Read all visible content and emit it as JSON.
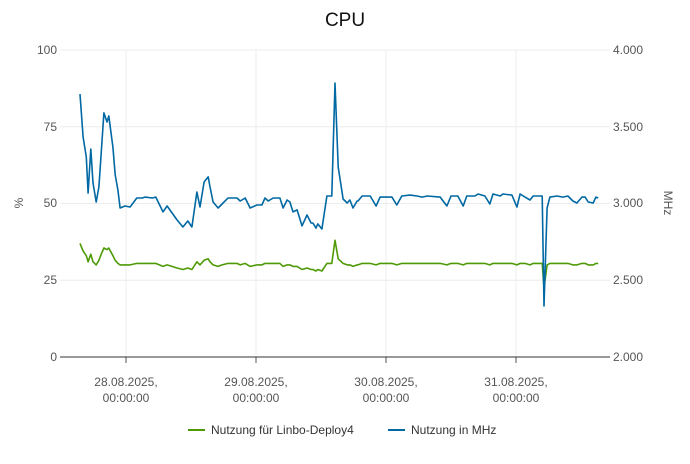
{
  "chart_data": {
    "type": "line",
    "title": "CPU",
    "ylabel_left": "%",
    "ylabel_right": "MHz",
    "ylim_left": [
      0,
      100
    ],
    "ylim_right": [
      2000,
      4000
    ],
    "yticks_left": [
      "0",
      "25",
      "50",
      "75",
      "100"
    ],
    "yticks_right": [
      "2.000",
      "2.500",
      "3.000",
      "3.500",
      "4.000"
    ],
    "xticks": [
      {
        "value": "2025-08-28 00:00",
        "label1": "28.08.2025,",
        "label2": "00:00:00"
      },
      {
        "value": "2025-08-29 00:00",
        "label1": "29.08.2025,",
        "label2": "00:00:00"
      },
      {
        "value": "2025-08-30 00:00",
        "label1": "30.08.2025,",
        "label2": "00:00:00"
      },
      {
        "value": "2025-08-31 00:00",
        "label1": "31.08.2025,",
        "label2": "00:00:00"
      }
    ],
    "grid": true,
    "legend_position": "bottom",
    "x": [
      "2025-08-27 15:30",
      "2025-08-27 16:05",
      "2025-08-27 16:40",
      "2025-08-27 17:00",
      "2025-08-27 17:30",
      "2025-08-27 17:55",
      "2025-08-27 18:30",
      "2025-08-27 19:00",
      "2025-08-27 19:25",
      "2025-08-27 19:55",
      "2025-08-27 20:30",
      "2025-08-27 20:50",
      "2025-08-27 21:35",
      "2025-08-27 22:00",
      "2025-08-27 22:30",
      "2025-08-27 22:55",
      "2025-08-27 23:50",
      "2025-08-28 00:45",
      "2025-08-28 02:00",
      "2025-08-28 03:00",
      "2025-08-28 03:30",
      "2025-08-28 04:50",
      "2025-08-28 05:30",
      "2025-08-28 06:50",
      "2025-08-28 07:35",
      "2025-08-28 09:25",
      "2025-08-28 10:30",
      "2025-08-28 11:25",
      "2025-08-28 12:10",
      "2025-08-28 13:05",
      "2025-08-28 13:40",
      "2025-08-28 14:25",
      "2025-08-28 15:10",
      "2025-08-28 15:30",
      "2025-08-28 16:05",
      "2025-08-28 17:00",
      "2025-08-28 17:45",
      "2025-08-28 18:50",
      "2025-08-28 20:30",
      "2025-08-28 21:05",
      "2025-08-28 22:00",
      "2025-08-28 22:55",
      "2025-08-29 00:10",
      "2025-08-29 01:05",
      "2025-08-29 01:40",
      "2025-08-29 02:15",
      "2025-08-29 03:10",
      "2025-08-29 04:25",
      "2025-08-29 05:00",
      "2025-08-29 05:45",
      "2025-08-29 06:15",
      "2025-08-29 06:50",
      "2025-08-29 07:35",
      "2025-08-29 08:30",
      "2025-08-29 09:25",
      "2025-08-29 10:10",
      "2025-08-29 10:30",
      "2025-08-29 11:05",
      "2025-08-29 11:25",
      "2025-08-29 12:10",
      "2025-08-29 13:05",
      "2025-08-29 14:00",
      "2025-08-29 14:35",
      "2025-08-29 15:10",
      "2025-08-29 16:05",
      "2025-08-29 16:50",
      "2025-08-29 17:20",
      "2025-08-29 17:55",
      "2025-08-29 18:40",
      "2025-08-29 18:50",
      "2025-08-29 19:35",
      "2025-08-29 21:05",
      "2025-08-29 22:10",
      "2025-08-29 22:55",
      "2025-08-30 01:05",
      "2025-08-30 02:00",
      "2025-08-30 02:55",
      "2025-08-30 04:25",
      "2025-08-30 05:45",
      "2025-08-30 06:40",
      "2025-08-30 07:35",
      "2025-08-30 10:00",
      "2025-08-30 11:15",
      "2025-08-30 12:00",
      "2025-08-30 13:15",
      "2025-08-30 14:15",
      "2025-08-30 14:55",
      "2025-08-30 16:25",
      "2025-08-30 17:00",
      "2025-08-30 18:15",
      "2025-08-30 19:10",
      "2025-08-30 19:45",
      "2025-08-30 21:05",
      "2025-08-30 21:35",
      "2025-08-30 23:15",
      "2025-08-31 00:10",
      "2025-08-31 00:45",
      "2025-08-31 01:40",
      "2025-08-31 02:35",
      "2025-08-31 03:10",
      "2025-08-31 04:50",
      "2025-08-31 05:10",
      "2025-08-31 05:45",
      "2025-08-31 06:15",
      "2025-08-31 07:35",
      "2025-08-31 08:40",
      "2025-08-31 09:35",
      "2025-08-31 10:30",
      "2025-08-31 11:15",
      "2025-08-31 12:10",
      "2025-08-31 12:45",
      "2025-08-31 13:20",
      "2025-08-31 14:15",
      "2025-08-31 14:45",
      "2025-08-31 15:10"
    ],
    "series": [
      {
        "name": "Nutzung für Linbo-Deploy4",
        "axis": "left",
        "color": "#4e9a06",
        "values": [
          37,
          34.5,
          33,
          31,
          33.5,
          31,
          30,
          31.5,
          33.5,
          35.5,
          35,
          35.5,
          33,
          31.5,
          30.5,
          30,
          30,
          30,
          30.5,
          30.5,
          30.5,
          30.5,
          30.5,
          29.5,
          30,
          29,
          28.5,
          29,
          28.5,
          31,
          30,
          31.5,
          32,
          31,
          30,
          29.5,
          30,
          30.5,
          30.5,
          30,
          30.5,
          29.5,
          30,
          30,
          30.5,
          30.5,
          30.5,
          30.5,
          29.5,
          30,
          30,
          29.5,
          29.5,
          28.5,
          29,
          28.5,
          28.5,
          28,
          28.5,
          28,
          30.5,
          30.5,
          38,
          32,
          30.5,
          30,
          30,
          29.5,
          30,
          30,
          30.5,
          30.5,
          30,
          30.5,
          30.5,
          30,
          30.5,
          30.5,
          30.5,
          30.5,
          30.5,
          30.5,
          30,
          30.5,
          30.5,
          30,
          30.5,
          30.5,
          30.5,
          30.5,
          30,
          30.5,
          30.5,
          30.5,
          30.5,
          30,
          30.5,
          30.5,
          30,
          30.5,
          30.5,
          22.5,
          30,
          30.5,
          30.5,
          30.5,
          30.5,
          30,
          30,
          30.5,
          30.5,
          30,
          30,
          30.5,
          30.5
        ]
      },
      {
        "name": "Nutzung in MHz",
        "axis": "right",
        "color": "#0068a3",
        "values": [
          3713,
          3433,
          3303,
          3068,
          3355,
          3134,
          3010,
          3108,
          3329,
          3590,
          3531,
          3570,
          3368,
          3186,
          3088,
          2971,
          2984,
          2977,
          3036,
          3036,
          3042,
          3036,
          3042,
          2945,
          2984,
          2893,
          2847,
          2886,
          2847,
          3075,
          2977,
          3140,
          3173,
          3108,
          3010,
          2971,
          2997,
          3036,
          3036,
          3016,
          3036,
          2971,
          2990,
          2990,
          3036,
          3016,
          3036,
          3036,
          2971,
          3023,
          3010,
          2945,
          2958,
          2854,
          2925,
          2873,
          2873,
          2840,
          2867,
          2834,
          3049,
          3049,
          3785,
          3238,
          3029,
          3003,
          3023,
          2971,
          3016,
          3016,
          3049,
          3049,
          2984,
          3042,
          3042,
          2990,
          3049,
          3055,
          3049,
          3042,
          3049,
          3042,
          2984,
          3049,
          3049,
          2984,
          3049,
          3049,
          3062,
          3049,
          2997,
          3062,
          3049,
          3062,
          3055,
          2977,
          3062,
          3042,
          3023,
          3049,
          3049,
          2332,
          2971,
          3042,
          3049,
          3042,
          3049,
          3016,
          3003,
          3042,
          3042,
          3010,
          3003,
          3042,
          3036
        ]
      }
    ]
  }
}
